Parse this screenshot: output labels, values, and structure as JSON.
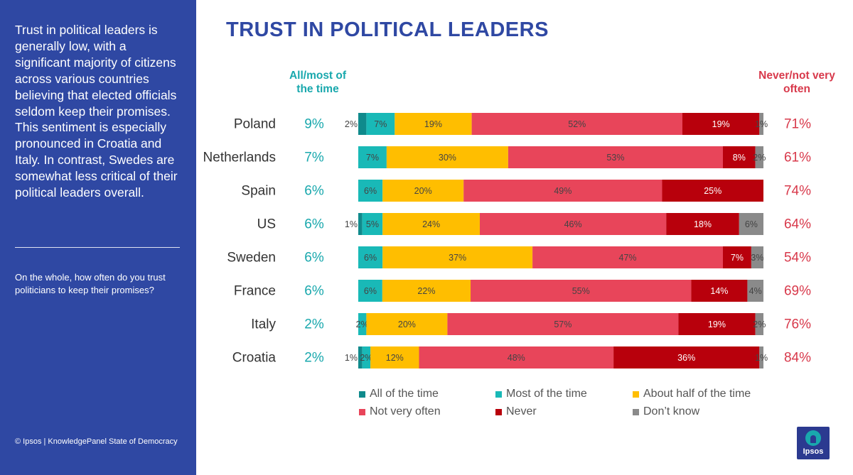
{
  "sidebar": {
    "summary": "Trust in political leaders is generally low, with a significant majority of citizens across various countries believing that elected officials seldom keep their promises. This sentiment is especially pronounced in Croatia and Italy. In contrast, Swedes are somewhat less critical of their political leaders overall.",
    "question": "On the whole, how often do you trust politicians to keep their promises?",
    "footer": "© Ipsos | KnowledgePanel State of Democracy"
  },
  "headers": {
    "left": "All/most of the time",
    "right": "Never/not very often"
  },
  "logo": {
    "text": "Ipsos",
    "colors": {
      "background": "#2b3a90",
      "mark": "#19a8ad"
    }
  },
  "chart_data": {
    "type": "bar",
    "orientation": "horizontal",
    "stacked": true,
    "title": "TRUST IN POLITICAL LEADERS",
    "legend_position": "bottom",
    "grid": false,
    "xlim": [
      0,
      100
    ],
    "categories": [
      "Poland",
      "Netherlands",
      "Spain",
      "US",
      "Sweden",
      "France",
      "Italy",
      "Croatia"
    ],
    "series": [
      {
        "name": "All of the time",
        "color": "#0f8a8c",
        "values": [
          2,
          0,
          0,
          1,
          0,
          0,
          0,
          1
        ],
        "labels": [
          "2%",
          "",
          "",
          "1%",
          "",
          "",
          "",
          "1%"
        ]
      },
      {
        "name": "Most of the time",
        "color": "#19b9b7",
        "values": [
          7,
          7,
          6,
          5,
          6,
          6,
          2,
          2
        ],
        "labels": [
          "7%",
          "7%",
          "6%",
          "5%",
          "6%",
          "6%",
          "2%",
          "2%"
        ]
      },
      {
        "name": "About half of the time",
        "color": "#ffbe00",
        "values": [
          19,
          30,
          20,
          24,
          37,
          22,
          20,
          12
        ],
        "labels": [
          "19%",
          "30%",
          "20%",
          "24%",
          "37%",
          "22%",
          "20%",
          "12%"
        ]
      },
      {
        "name": "Not very often",
        "color": "#e8455a",
        "values": [
          52,
          53,
          49,
          46,
          47,
          55,
          57,
          48
        ],
        "labels": [
          "52%",
          "53%",
          "49%",
          "46%",
          "47%",
          "55%",
          "57%",
          "48%"
        ]
      },
      {
        "name": "Never",
        "color": "#b8000c",
        "values": [
          19,
          8,
          25,
          18,
          7,
          14,
          19,
          36
        ],
        "labels": [
          "19%",
          "8%",
          "25%",
          "18%",
          "7%",
          "14%",
          "19%",
          "36%"
        ]
      },
      {
        "name": "Don’t know",
        "color": "#8a8a8a",
        "values": [
          1,
          2,
          0,
          6,
          3,
          4,
          2,
          1
        ],
        "labels": [
          "1%",
          "2%",
          "",
          "6%",
          "3%",
          "4%",
          "2%",
          "1%"
        ]
      }
    ],
    "totals_all_most": [
      "9%",
      "7%",
      "6%",
      "6%",
      "6%",
      "6%",
      "2%",
      "2%"
    ],
    "totals_never_not": [
      "71%",
      "61%",
      "74%",
      "64%",
      "54%",
      "69%",
      "76%",
      "84%"
    ],
    "colors": {
      "totals_all_most": "#19a8ad",
      "totals_never_not": "#d8394b"
    }
  }
}
